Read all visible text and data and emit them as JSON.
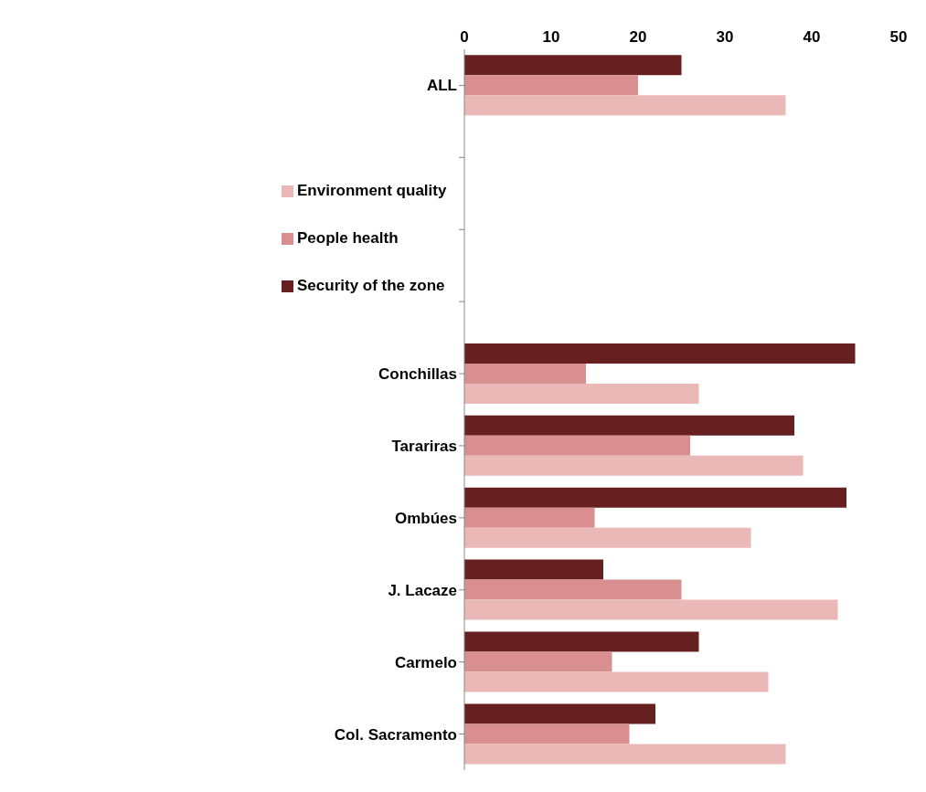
{
  "chart_data": {
    "type": "bar",
    "orientation": "horizontal",
    "categories": [
      "ALL",
      null,
      null,
      null,
      "Conchillas",
      "Tarariras",
      "Ombúes",
      "J. Lacaze",
      "Carmelo",
      "Col. Sacramento"
    ],
    "series": [
      {
        "name": "Security of the zone",
        "color": "#66201f",
        "values": [
          25,
          null,
          null,
          null,
          45,
          38,
          44,
          16,
          27,
          22
        ]
      },
      {
        "name": "People health",
        "color": "#d98f8f",
        "values": [
          20,
          null,
          null,
          null,
          14,
          26,
          15,
          25,
          17,
          19
        ]
      },
      {
        "name": "Environment quality",
        "color": "#ebb8b8",
        "values": [
          37,
          null,
          null,
          null,
          27,
          39,
          33,
          43,
          35,
          37
        ]
      }
    ],
    "xlim": [
      0,
      50
    ],
    "xticks": [
      0,
      10,
      20,
      30,
      40,
      50
    ],
    "grid": false,
    "legend": "top left"
  }
}
